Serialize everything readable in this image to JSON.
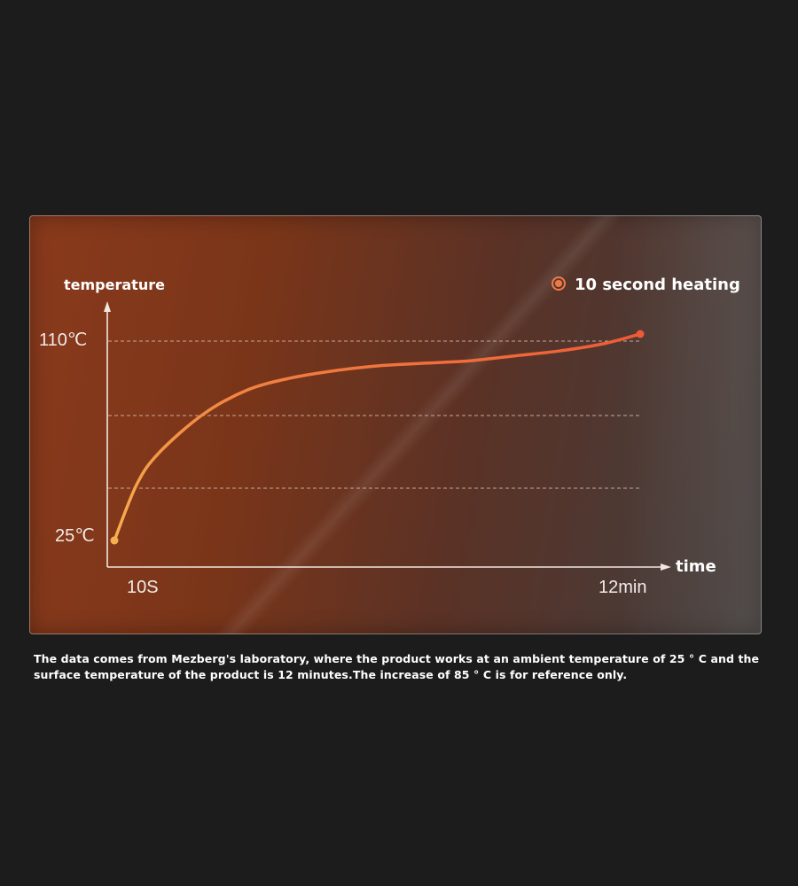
{
  "chart_data": {
    "type": "line",
    "title": "",
    "xlabel": "time",
    "ylabel": "temperature",
    "x_tick_labels": [
      "10S",
      "12min"
    ],
    "y_tick_labels": [
      "110℃",
      "25℃"
    ],
    "legend": {
      "label": "10 second heating",
      "placement": "top-right"
    },
    "grid": true,
    "ylim": [
      25,
      110
    ],
    "series": [
      {
        "name": "10 second heating",
        "color": "#f0703a",
        "x": [
          0,
          0.5,
          1,
          2,
          3,
          4,
          5,
          6,
          7,
          8,
          9,
          10,
          11,
          11.83
        ],
        "y": [
          25,
          48,
          61,
          77,
          87,
          92,
          95,
          97,
          98,
          99,
          101,
          103,
          106,
          110
        ]
      }
    ],
    "start_label_x": "10S",
    "end_label_x": "12min"
  },
  "caption": {
    "line1": "The data comes from Mezberg's laboratory, where the product works at an ambient temperature of 25 ° C and the",
    "line2": "surface temperature of the product is 12 minutes.The increase of 85 ° C is for reference only."
  }
}
